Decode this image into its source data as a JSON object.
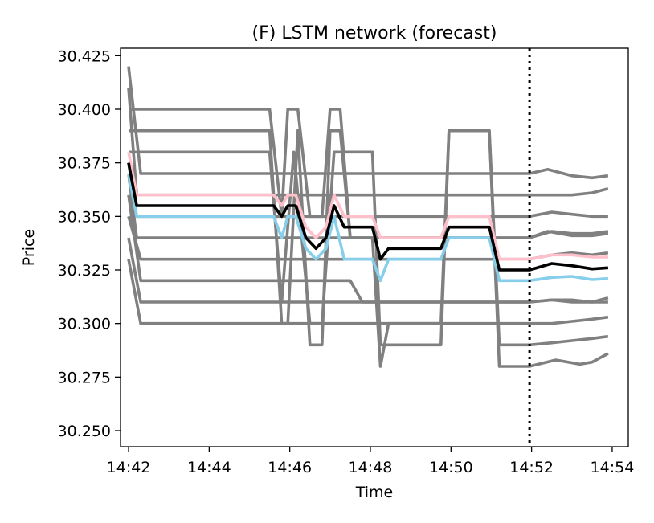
{
  "chart_data": {
    "type": "line",
    "title": "(F) LSTM network (forecast)",
    "xlabel": "Time",
    "ylabel": "Price",
    "x_unit": "clock time (HH:MM)",
    "x_ticks": [
      "14:42",
      "14:44",
      "14:46",
      "14:48",
      "14:50",
      "14:52",
      "14:54"
    ],
    "y_ticks": [
      "30.250",
      "30.275",
      "30.300",
      "30.325",
      "30.350",
      "30.375",
      "30.400",
      "30.425"
    ],
    "xlim": [
      "14:41.8",
      "14:54.4"
    ],
    "ylim": [
      30.2425,
      30.4285
    ],
    "grid": false,
    "legend": "none",
    "forecast_start_marker": {
      "x": "14:51.95",
      "style": "dotted",
      "color": "#000000"
    },
    "colors": {
      "median": "#000000",
      "upper": "#ffc0cb",
      "lower": "#87ceeb",
      "band": "#808080"
    },
    "series": [
      {
        "role": "median",
        "color": "#000000",
        "points": [
          [
            "14:42.0",
            30.375
          ],
          [
            "14:42.2",
            30.355
          ],
          [
            "14:45.6",
            30.355
          ],
          [
            "14:45.8",
            30.35
          ],
          [
            "14:45.95",
            30.355
          ],
          [
            "14:46.15",
            30.355
          ],
          [
            "14:46.4",
            30.34
          ],
          [
            "14:46.65",
            30.335
          ],
          [
            "14:46.9",
            30.34
          ],
          [
            "14:47.1",
            30.355
          ],
          [
            "14:47.35",
            30.345
          ],
          [
            "14:48.05",
            30.345
          ],
          [
            "14:48.25",
            30.33
          ],
          [
            "14:48.45",
            30.335
          ],
          [
            "14:49.75",
            30.335
          ],
          [
            "14:49.95",
            30.345
          ],
          [
            "14:50.95",
            30.345
          ],
          [
            "14:51.2",
            30.325
          ],
          [
            "14:51.95",
            30.325
          ],
          [
            "14:52.5",
            30.328
          ],
          [
            "14:53.0",
            30.327
          ],
          [
            "14:53.5",
            30.3255
          ],
          [
            "14:53.9",
            30.326
          ]
        ]
      },
      {
        "role": "upper",
        "color": "#ffc0cb",
        "points": [
          [
            "14:42.0",
            30.38
          ],
          [
            "14:42.2",
            30.36
          ],
          [
            "14:45.6",
            30.36
          ],
          [
            "14:45.8",
            30.355
          ],
          [
            "14:45.95",
            30.36
          ],
          [
            "14:46.15",
            30.36
          ],
          [
            "14:46.4",
            30.345
          ],
          [
            "14:46.65",
            30.34
          ],
          [
            "14:46.9",
            30.345
          ],
          [
            "14:47.1",
            30.36
          ],
          [
            "14:47.35",
            30.35
          ],
          [
            "14:48.05",
            30.35
          ],
          [
            "14:48.25",
            30.34
          ],
          [
            "14:49.75",
            30.34
          ],
          [
            "14:49.95",
            30.35
          ],
          [
            "14:50.95",
            30.35
          ],
          [
            "14:51.2",
            30.33
          ],
          [
            "14:51.95",
            30.33
          ],
          [
            "14:52.5",
            30.332
          ],
          [
            "14:53.0",
            30.332
          ],
          [
            "14:53.5",
            30.331
          ],
          [
            "14:53.9",
            30.331
          ]
        ]
      },
      {
        "role": "lower",
        "color": "#87ceeb",
        "points": [
          [
            "14:42.0",
            30.37
          ],
          [
            "14:42.2",
            30.35
          ],
          [
            "14:45.6",
            30.35
          ],
          [
            "14:45.8",
            30.34
          ],
          [
            "14:45.95",
            30.35
          ],
          [
            "14:46.15",
            30.35
          ],
          [
            "14:46.4",
            30.335
          ],
          [
            "14:46.65",
            30.33
          ],
          [
            "14:46.9",
            30.335
          ],
          [
            "14:47.1",
            30.35
          ],
          [
            "14:47.35",
            30.33
          ],
          [
            "14:48.05",
            30.33
          ],
          [
            "14:48.25",
            30.32
          ],
          [
            "14:48.45",
            30.33
          ],
          [
            "14:49.75",
            30.33
          ],
          [
            "14:49.95",
            30.34
          ],
          [
            "14:50.95",
            30.34
          ],
          [
            "14:51.2",
            30.32
          ],
          [
            "14:51.95",
            30.32
          ],
          [
            "14:52.5",
            30.3215
          ],
          [
            "14:53.0",
            30.322
          ],
          [
            "14:53.5",
            30.3205
          ],
          [
            "14:53.9",
            30.321
          ]
        ]
      },
      {
        "role": "band",
        "color": "#808080",
        "points": [
          [
            "14:42.0",
            30.42
          ],
          [
            "14:42.3",
            30.37
          ],
          [
            "14:51.95",
            30.37
          ],
          [
            "14:52.4",
            30.372
          ],
          [
            "14:53.0",
            30.369
          ],
          [
            "14:53.5",
            30.368
          ],
          [
            "14:53.9",
            30.369
          ]
        ]
      },
      {
        "role": "band",
        "color": "#808080",
        "points": [
          [
            "14:42.0",
            30.41
          ],
          [
            "14:42.2",
            30.36
          ],
          [
            "14:51.95",
            30.36
          ],
          [
            "14:52.5",
            30.36
          ],
          [
            "14:53.0",
            30.36
          ],
          [
            "14:53.5",
            30.361
          ],
          [
            "14:53.9",
            30.363
          ]
        ]
      },
      {
        "role": "band",
        "color": "#808080",
        "points": [
          [
            "14:42.0",
            30.4
          ],
          [
            "14:42.2",
            30.4
          ],
          [
            "14:45.5",
            30.4
          ],
          [
            "14:45.8",
            30.35
          ],
          [
            "14:45.95",
            30.4
          ],
          [
            "14:46.2",
            30.4
          ],
          [
            "14:46.5",
            30.35
          ],
          [
            "14:46.8",
            30.35
          ],
          [
            "14:47.0",
            30.4
          ],
          [
            "14:47.25",
            30.4
          ],
          [
            "14:47.5",
            30.34
          ],
          [
            "14:51.95",
            30.34
          ],
          [
            "14:52.4",
            30.343
          ],
          [
            "14:53.0",
            30.341
          ],
          [
            "14:53.5",
            30.341
          ],
          [
            "14:53.9",
            30.342
          ]
        ]
      },
      {
        "role": "band",
        "color": "#808080",
        "points": [
          [
            "14:42.0",
            30.39
          ],
          [
            "14:42.2",
            30.39
          ],
          [
            "14:45.5",
            30.39
          ],
          [
            "14:45.8",
            30.3
          ],
          [
            "14:45.95",
            30.3
          ],
          [
            "14:46.2",
            30.39
          ],
          [
            "14:46.5",
            30.29
          ],
          [
            "14:46.8",
            30.29
          ],
          [
            "14:47.0",
            30.39
          ],
          [
            "14:47.25",
            30.39
          ],
          [
            "14:47.5",
            30.34
          ],
          [
            "14:48.05",
            30.34
          ],
          [
            "14:48.25",
            30.28
          ],
          [
            "14:48.45",
            30.3
          ],
          [
            "14:49.75",
            30.3
          ],
          [
            "14:49.95",
            30.39
          ],
          [
            "14:50.95",
            30.39
          ],
          [
            "14:51.2",
            30.28
          ],
          [
            "14:51.95",
            30.28
          ],
          [
            "14:52.6",
            30.283
          ],
          [
            "14:53.2",
            30.281
          ],
          [
            "14:53.5",
            30.282
          ],
          [
            "14:53.9",
            30.286
          ]
        ]
      },
      {
        "role": "band",
        "color": "#808080",
        "points": [
          [
            "14:42.0",
            30.38
          ],
          [
            "14:42.2",
            30.38
          ],
          [
            "14:45.5",
            30.38
          ],
          [
            "14:45.8",
            30.31
          ],
          [
            "14:46.1",
            30.38
          ],
          [
            "14:46.5",
            30.3
          ],
          [
            "14:46.8",
            30.3
          ],
          [
            "14:47.1",
            30.38
          ],
          [
            "14:47.5",
            30.38
          ],
          [
            "14:48.05",
            30.38
          ],
          [
            "14:48.25",
            30.29
          ],
          [
            "14:48.45",
            30.29
          ],
          [
            "14:49.75",
            30.29
          ],
          [
            "14:49.95",
            30.39
          ],
          [
            "14:50.1",
            30.39
          ],
          [
            "14:50.3",
            30.39
          ],
          [
            "14:50.95",
            30.39
          ],
          [
            "14:51.2",
            30.29
          ],
          [
            "14:51.95",
            30.29
          ],
          [
            "14:52.5",
            30.291
          ],
          [
            "14:53.0",
            30.292
          ],
          [
            "14:53.5",
            30.293
          ],
          [
            "14:53.9",
            30.294
          ]
        ]
      },
      {
        "role": "band",
        "color": "#808080",
        "points": [
          [
            "14:42.0",
            30.36
          ],
          [
            "14:42.3",
            30.32
          ],
          [
            "14:47.5",
            30.32
          ],
          [
            "14:47.8",
            30.31
          ],
          [
            "14:51.95",
            30.31
          ],
          [
            "14:52.5",
            30.311
          ],
          [
            "14:53.0",
            30.311
          ],
          [
            "14:53.5",
            30.31
          ],
          [
            "14:53.9",
            30.31
          ]
        ]
      },
      {
        "role": "band",
        "color": "#808080",
        "points": [
          [
            "14:42.0",
            30.35
          ],
          [
            "14:42.3",
            30.33
          ],
          [
            "14:51.95",
            30.33
          ],
          [
            "14:52.5",
            30.332
          ],
          [
            "14:53.0",
            30.333
          ],
          [
            "14:53.5",
            30.332
          ],
          [
            "14:53.9",
            30.333
          ]
        ]
      },
      {
        "role": "band",
        "color": "#808080",
        "points": [
          [
            "14:42.0",
            30.34
          ],
          [
            "14:42.3",
            30.31
          ],
          [
            "14:51.95",
            30.31
          ],
          [
            "14:52.5",
            30.311
          ],
          [
            "14:53.0",
            30.31
          ],
          [
            "14:53.5",
            30.31
          ],
          [
            "14:53.9",
            30.312
          ]
        ]
      },
      {
        "role": "band",
        "color": "#808080",
        "points": [
          [
            "14:42.0",
            30.33
          ],
          [
            "14:42.3",
            30.3
          ],
          [
            "14:51.95",
            30.3
          ],
          [
            "14:52.5",
            30.3
          ],
          [
            "14:53.0",
            30.301
          ],
          [
            "14:53.5",
            30.302
          ],
          [
            "14:53.9",
            30.303
          ]
        ]
      },
      {
        "role": "band",
        "color": "#808080",
        "points": [
          [
            "14:42.0",
            30.37
          ],
          [
            "14:42.2",
            30.34
          ],
          [
            "14:51.95",
            30.34
          ],
          [
            "14:52.5",
            30.343
          ],
          [
            "14:53.0",
            30.342
          ],
          [
            "14:53.5",
            30.342
          ],
          [
            "14:53.9",
            30.343
          ]
        ]
      },
      {
        "role": "band",
        "color": "#808080",
        "points": [
          [
            "14:42.0",
            30.375
          ],
          [
            "14:42.2",
            30.35
          ],
          [
            "14:51.95",
            30.35
          ],
          [
            "14:52.5",
            30.352
          ],
          [
            "14:53.0",
            30.351
          ],
          [
            "14:53.5",
            30.35
          ],
          [
            "14:53.9",
            30.35
          ]
        ]
      }
    ]
  }
}
